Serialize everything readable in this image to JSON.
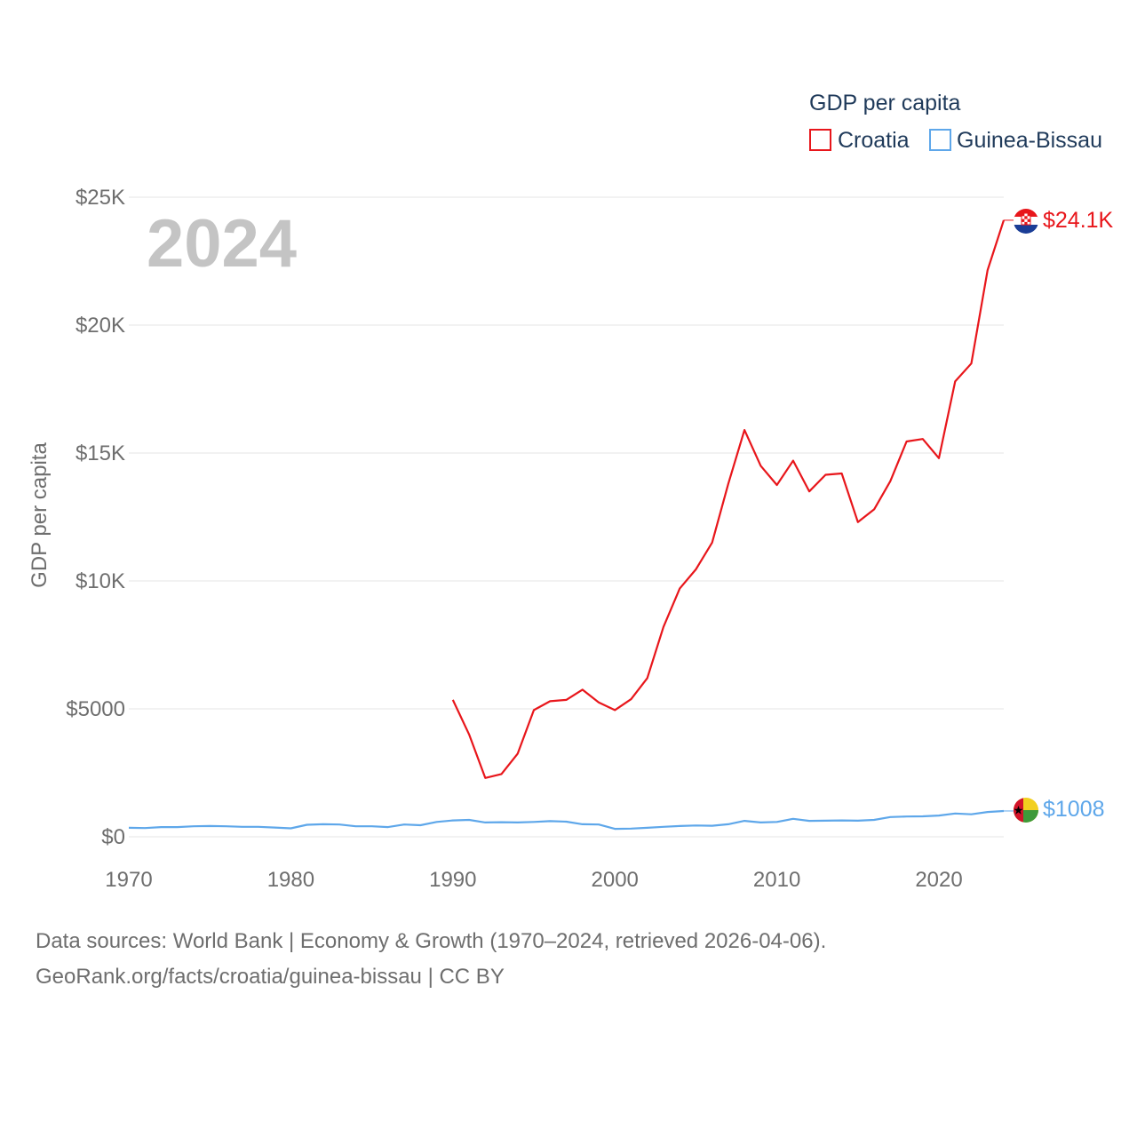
{
  "chart_data": {
    "type": "line",
    "legend_title": "GDP per capita",
    "ylabel": "GDP per capita",
    "year_watermark": "2024",
    "xlim": [
      1970,
      2024
    ],
    "ylim": [
      0,
      25000
    ],
    "x_ticks": [
      1970,
      1980,
      1990,
      2000,
      2010,
      2020
    ],
    "x_tick_labels": [
      "1970",
      "1980",
      "1990",
      "2000",
      "2010",
      "2020"
    ],
    "y_ticks": [
      0,
      5000,
      10000,
      15000,
      20000,
      25000
    ],
    "y_tick_labels": [
      "$0",
      "$5000",
      "$10K",
      "$15K",
      "$20K",
      "$25K"
    ],
    "grid": true,
    "legend_position": "top-right",
    "series": [
      {
        "name": "Croatia",
        "color": "#e8161b",
        "end_label": "$24.1K",
        "flag": "croatia-flag",
        "x": [
          1990,
          1991,
          1992,
          1993,
          1994,
          1995,
          1996,
          1997,
          1998,
          1999,
          2000,
          2001,
          2002,
          2003,
          2004,
          2005,
          2006,
          2007,
          2008,
          2009,
          2010,
          2011,
          2012,
          2013,
          2014,
          2015,
          2016,
          2017,
          2018,
          2019,
          2020,
          2021,
          2022,
          2023,
          2024
        ],
        "values": [
          5350,
          4000,
          2300,
          2450,
          3250,
          4950,
          5300,
          5350,
          5750,
          5250,
          4950,
          5380,
          6200,
          8200,
          9700,
          10450,
          11500,
          13800,
          15900,
          14500,
          13750,
          14700,
          13500,
          14150,
          14200,
          12300,
          12800,
          13900,
          15450,
          15550,
          14800,
          17800,
          18500,
          22150,
          24100
        ]
      },
      {
        "name": "Guinea-Bissau",
        "color": "#5ea7ea",
        "end_label": "$1008",
        "flag": "guinea-bissau-flag",
        "x": [
          1970,
          1971,
          1972,
          1973,
          1974,
          1975,
          1976,
          1977,
          1978,
          1979,
          1980,
          1981,
          1982,
          1983,
          1984,
          1985,
          1986,
          1987,
          1988,
          1989,
          1990,
          1991,
          1992,
          1993,
          1994,
          1995,
          1996,
          1997,
          1998,
          1999,
          2000,
          2001,
          2002,
          2003,
          2004,
          2005,
          2006,
          2007,
          2008,
          2009,
          2010,
          2011,
          2012,
          2013,
          2014,
          2015,
          2016,
          2017,
          2018,
          2019,
          2020,
          2021,
          2022,
          2023,
          2024
        ],
        "values": [
          350,
          340,
          380,
          380,
          410,
          420,
          410,
          390,
          390,
          360,
          330,
          470,
          490,
          480,
          410,
          410,
          380,
          480,
          450,
          580,
          640,
          660,
          560,
          570,
          560,
          580,
          610,
          590,
          490,
          480,
          310,
          320,
          350,
          390,
          420,
          440,
          430,
          490,
          620,
          560,
          580,
          700,
          620,
          630,
          640,
          630,
          660,
          770,
          790,
          800,
          830,
          910,
          880,
          970,
          1008
        ]
      }
    ]
  },
  "footer": {
    "line1": "Data sources: World Bank | Economy & Growth (1970–2024, retrieved 2026-04-06).",
    "line2": "GeoRank.org/facts/croatia/guinea-bissau | CC BY"
  }
}
